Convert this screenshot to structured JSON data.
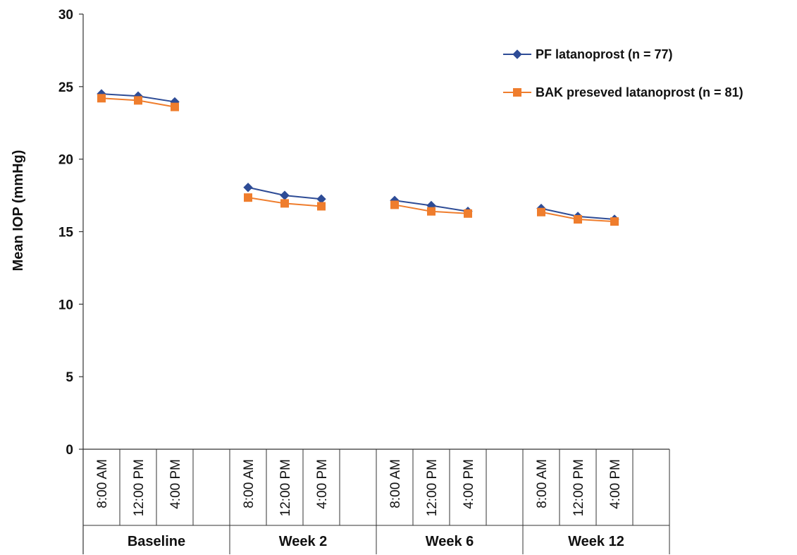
{
  "chart_data": {
    "type": "line",
    "title": "",
    "xlabel": "",
    "ylabel": "Mean IOP (mmHg)",
    "ylim": [
      0,
      30
    ],
    "yticks": [
      0,
      5,
      10,
      15,
      20,
      25,
      30
    ],
    "grid": false,
    "legend_position": "top-right",
    "groups": [
      {
        "label": "Baseline",
        "times": [
          "8:00 AM",
          "12:00 PM",
          "4:00 PM"
        ]
      },
      {
        "label": "Week 2",
        "times": [
          "8:00 AM",
          "12:00 PM",
          "4:00 PM"
        ]
      },
      {
        "label": "Week 6",
        "times": [
          "8:00 AM",
          "12:00 PM",
          "4:00 PM"
        ]
      },
      {
        "label": "Week 12",
        "times": [
          "8:00 AM",
          "12:00 PM",
          "4:00 PM"
        ]
      }
    ],
    "series": [
      {
        "name": "PF latanoprost (n = 77)",
        "color": "#2e4c96",
        "marker": "diamond",
        "values": [
          [
            24.5,
            24.35,
            23.95
          ],
          [
            18.05,
            17.5,
            17.25
          ],
          [
            17.15,
            16.8,
            16.4
          ],
          [
            16.6,
            16.05,
            15.85
          ]
        ]
      },
      {
        "name": "BAK preseved latanoprost (n = 81)",
        "color": "#ef7d2d",
        "marker": "square",
        "values": [
          [
            24.2,
            24.05,
            23.6
          ],
          [
            17.35,
            16.95,
            16.75
          ],
          [
            16.85,
            16.4,
            16.25
          ],
          [
            16.35,
            15.85,
            15.7
          ]
        ]
      }
    ]
  }
}
